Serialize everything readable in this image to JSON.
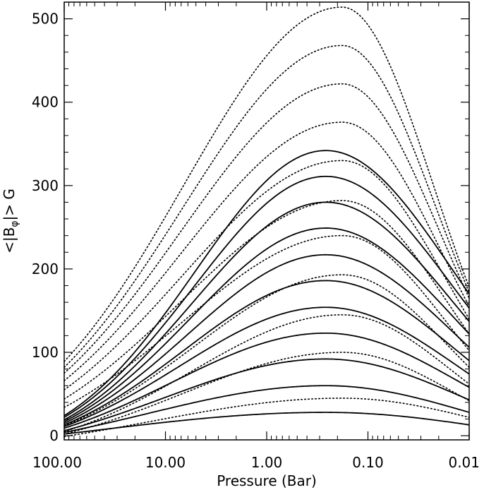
{
  "chart_data": {
    "type": "line",
    "xlabel": "Pressure (Bar)",
    "ylabel_prefix": "<|B",
    "ylabel_sub": "φ",
    "ylabel_suffix": "|> G",
    "x_scale": "log",
    "x_reversed": true,
    "xlim": [
      100,
      0.01
    ],
    "ylim": [
      -5,
      520
    ],
    "x_ticks": [
      {
        "value": 100,
        "label": "100.00"
      },
      {
        "value": 10,
        "label": "10.00"
      },
      {
        "value": 1,
        "label": "1.00"
      },
      {
        "value": 0.1,
        "label": "0.10"
      },
      {
        "value": 0.01,
        "label": "0.01"
      }
    ],
    "y_ticks": [
      {
        "value": 0,
        "label": "0"
      },
      {
        "value": 100,
        "label": "100"
      },
      {
        "value": 200,
        "label": "200"
      },
      {
        "value": 300,
        "label": "300"
      },
      {
        "value": 400,
        "label": "400"
      },
      {
        "value": 500,
        "label": "500"
      }
    ],
    "grid": false,
    "legend": "none",
    "curve_model": "gaussian-in-log-pressure",
    "solid_peak_pressure": 0.26,
    "dotted_peak_pressure": 0.18,
    "series": [
      {
        "style": "solid",
        "peak": 28,
        "left": 2,
        "right": 13
      },
      {
        "style": "solid",
        "peak": 60,
        "left": 4,
        "right": 28
      },
      {
        "style": "solid",
        "peak": 92,
        "left": 6,
        "right": 43
      },
      {
        "style": "solid",
        "peak": 123,
        "left": 9,
        "right": 58
      },
      {
        "style": "solid",
        "peak": 154,
        "left": 11,
        "right": 74
      },
      {
        "style": "solid",
        "peak": 186,
        "left": 13,
        "right": 90
      },
      {
        "style": "solid",
        "peak": 217,
        "left": 15,
        "right": 106
      },
      {
        "style": "solid",
        "peak": 249,
        "left": 17,
        "right": 122
      },
      {
        "style": "solid",
        "peak": 280,
        "left": 19,
        "right": 137
      },
      {
        "style": "solid",
        "peak": 311,
        "left": 22,
        "right": 153
      },
      {
        "style": "solid",
        "peak": 342,
        "left": 24,
        "right": 170
      },
      {
        "style": "dotted",
        "peak": 45,
        "left": -1,
        "right": 22
      },
      {
        "style": "dotted",
        "peak": 100,
        "left": 2,
        "right": 42
      },
      {
        "style": "dotted",
        "peak": 145,
        "left": 5,
        "right": 62
      },
      {
        "style": "dotted",
        "peak": 193,
        "left": 12,
        "right": 82
      },
      {
        "style": "dotted",
        "peak": 240,
        "left": 34,
        "right": 102
      },
      {
        "style": "dotted",
        "peak": 282,
        "left": 44,
        "right": 122
      },
      {
        "style": "dotted",
        "peak": 330,
        "left": 55,
        "right": 140
      },
      {
        "style": "dotted",
        "peak": 376,
        "left": 66,
        "right": 155
      },
      {
        "style": "dotted",
        "peak": 422,
        "left": 75,
        "right": 165
      },
      {
        "style": "dotted",
        "peak": 468,
        "left": 82,
        "right": 172
      },
      {
        "style": "dotted",
        "peak": 514,
        "left": 89,
        "right": 178
      }
    ]
  }
}
